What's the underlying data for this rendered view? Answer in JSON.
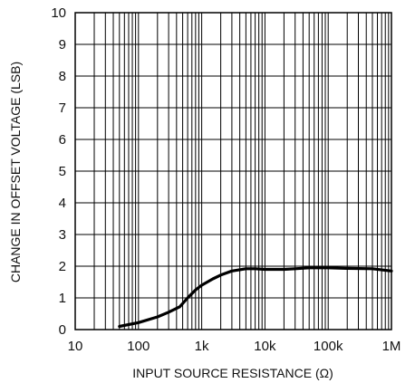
{
  "chart_data": {
    "type": "line",
    "title": "",
    "xlabel": "INPUT SOURCE RESISTANCE (Ω)",
    "ylabel": "CHANGE IN OFFSET VOLTAGE (LSB)",
    "x_scale": "log",
    "xlim": [
      10,
      1000000
    ],
    "ylim": [
      0,
      10
    ],
    "grid": true,
    "x_ticks": [
      {
        "value": 10,
        "label": "10"
      },
      {
        "value": 100,
        "label": "100"
      },
      {
        "value": 1000,
        "label": "1k"
      },
      {
        "value": 10000,
        "label": "10k"
      },
      {
        "value": 100000,
        "label": "100k"
      },
      {
        "value": 1000000,
        "label": "1M"
      }
    ],
    "y_ticks": [
      {
        "value": 0,
        "label": "0"
      },
      {
        "value": 1,
        "label": "1"
      },
      {
        "value": 2,
        "label": "2"
      },
      {
        "value": 3,
        "label": "3"
      },
      {
        "value": 4,
        "label": "4"
      },
      {
        "value": 5,
        "label": "5"
      },
      {
        "value": 6,
        "label": "6"
      },
      {
        "value": 7,
        "label": "7"
      },
      {
        "value": 8,
        "label": "8"
      },
      {
        "value": 9,
        "label": "9"
      },
      {
        "value": 10,
        "label": "10"
      }
    ],
    "series": [
      {
        "x": [
          50,
          100,
          200,
          300,
          450,
          600,
          800,
          1000,
          1500,
          2000,
          3000,
          5000,
          7000,
          10000,
          20000,
          30000,
          50000,
          100000,
          200000,
          500000,
          1000000
        ],
        "y": [
          0.1,
          0.22,
          0.4,
          0.55,
          0.72,
          1.0,
          1.25,
          1.4,
          1.6,
          1.72,
          1.85,
          1.92,
          1.92,
          1.9,
          1.9,
          1.92,
          1.95,
          1.95,
          1.93,
          1.92,
          1.85
        ]
      }
    ]
  }
}
